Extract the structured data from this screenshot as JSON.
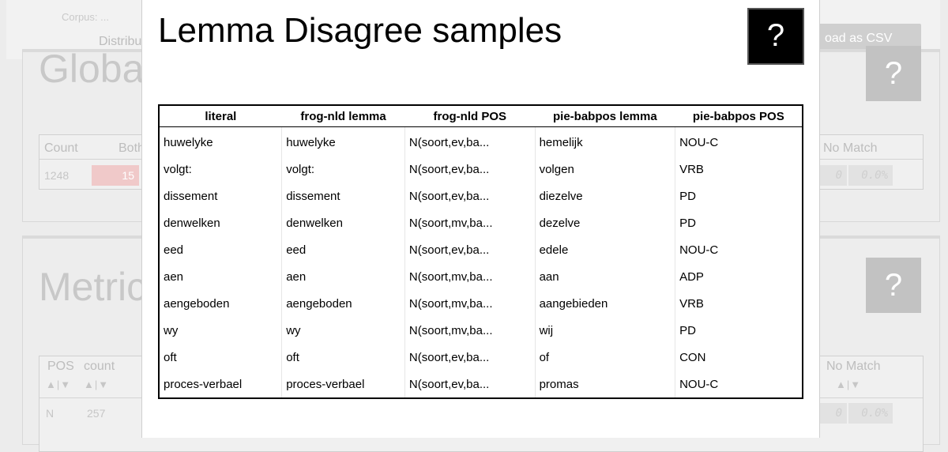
{
  "background": {
    "crumb": "Corpus: ...",
    "distribution_label": "Distribut",
    "csv_button": "oad as CSV",
    "global_panel": {
      "title": "Globa",
      "help": "?",
      "headers": [
        "Count",
        "Both",
        "No Match"
      ],
      "row": {
        "count": "1248",
        "both": "15",
        "no_match_count": "0",
        "no_match_pct": "0.0%"
      }
    },
    "metric_panel": {
      "title": "Metric",
      "help": "?",
      "headers": [
        "POS",
        "count",
        "No Match"
      ],
      "sort_arrows": "▲|▼",
      "row": {
        "pos": "N",
        "count": "257",
        "no_match_count": "0",
        "no_match_pct": "0.0%"
      }
    }
  },
  "modal": {
    "title": "Lemma Disagree samples",
    "help_label": "?",
    "columns": [
      "literal",
      "frog-nld lemma",
      "frog-nld POS",
      "pie-babpos lemma",
      "pie-babpos POS"
    ],
    "rows": [
      [
        "huwelyke",
        "huwelyke",
        "N(soort,ev,ba...",
        "hemelijk",
        "NOU-C"
      ],
      [
        "volgt:",
        "volgt:",
        "N(soort,ev,ba...",
        "volgen",
        "VRB"
      ],
      [
        "dissement",
        "dissement",
        "N(soort,ev,ba...",
        "diezelve",
        "PD"
      ],
      [
        "denwelken",
        "denwelken",
        "N(soort,mv,ba...",
        "dezelve",
        "PD"
      ],
      [
        "eed",
        "eed",
        "N(soort,ev,ba...",
        "edele",
        "NOU-C"
      ],
      [
        "aen",
        "aen",
        "N(soort,mv,ba...",
        "aan",
        "ADP"
      ],
      [
        "aengeboden",
        "aengeboden",
        "N(soort,mv,ba...",
        "aangebieden",
        "VRB"
      ],
      [
        "wy",
        "wy",
        "N(soort,mv,ba...",
        "wij",
        "PD"
      ],
      [
        "oft",
        "oft",
        "N(soort,ev,ba...",
        "of",
        "CON"
      ],
      [
        "proces-verbael",
        "proces-verbael",
        "N(soort,ev,ba...",
        "promas",
        "NOU-C"
      ]
    ]
  }
}
